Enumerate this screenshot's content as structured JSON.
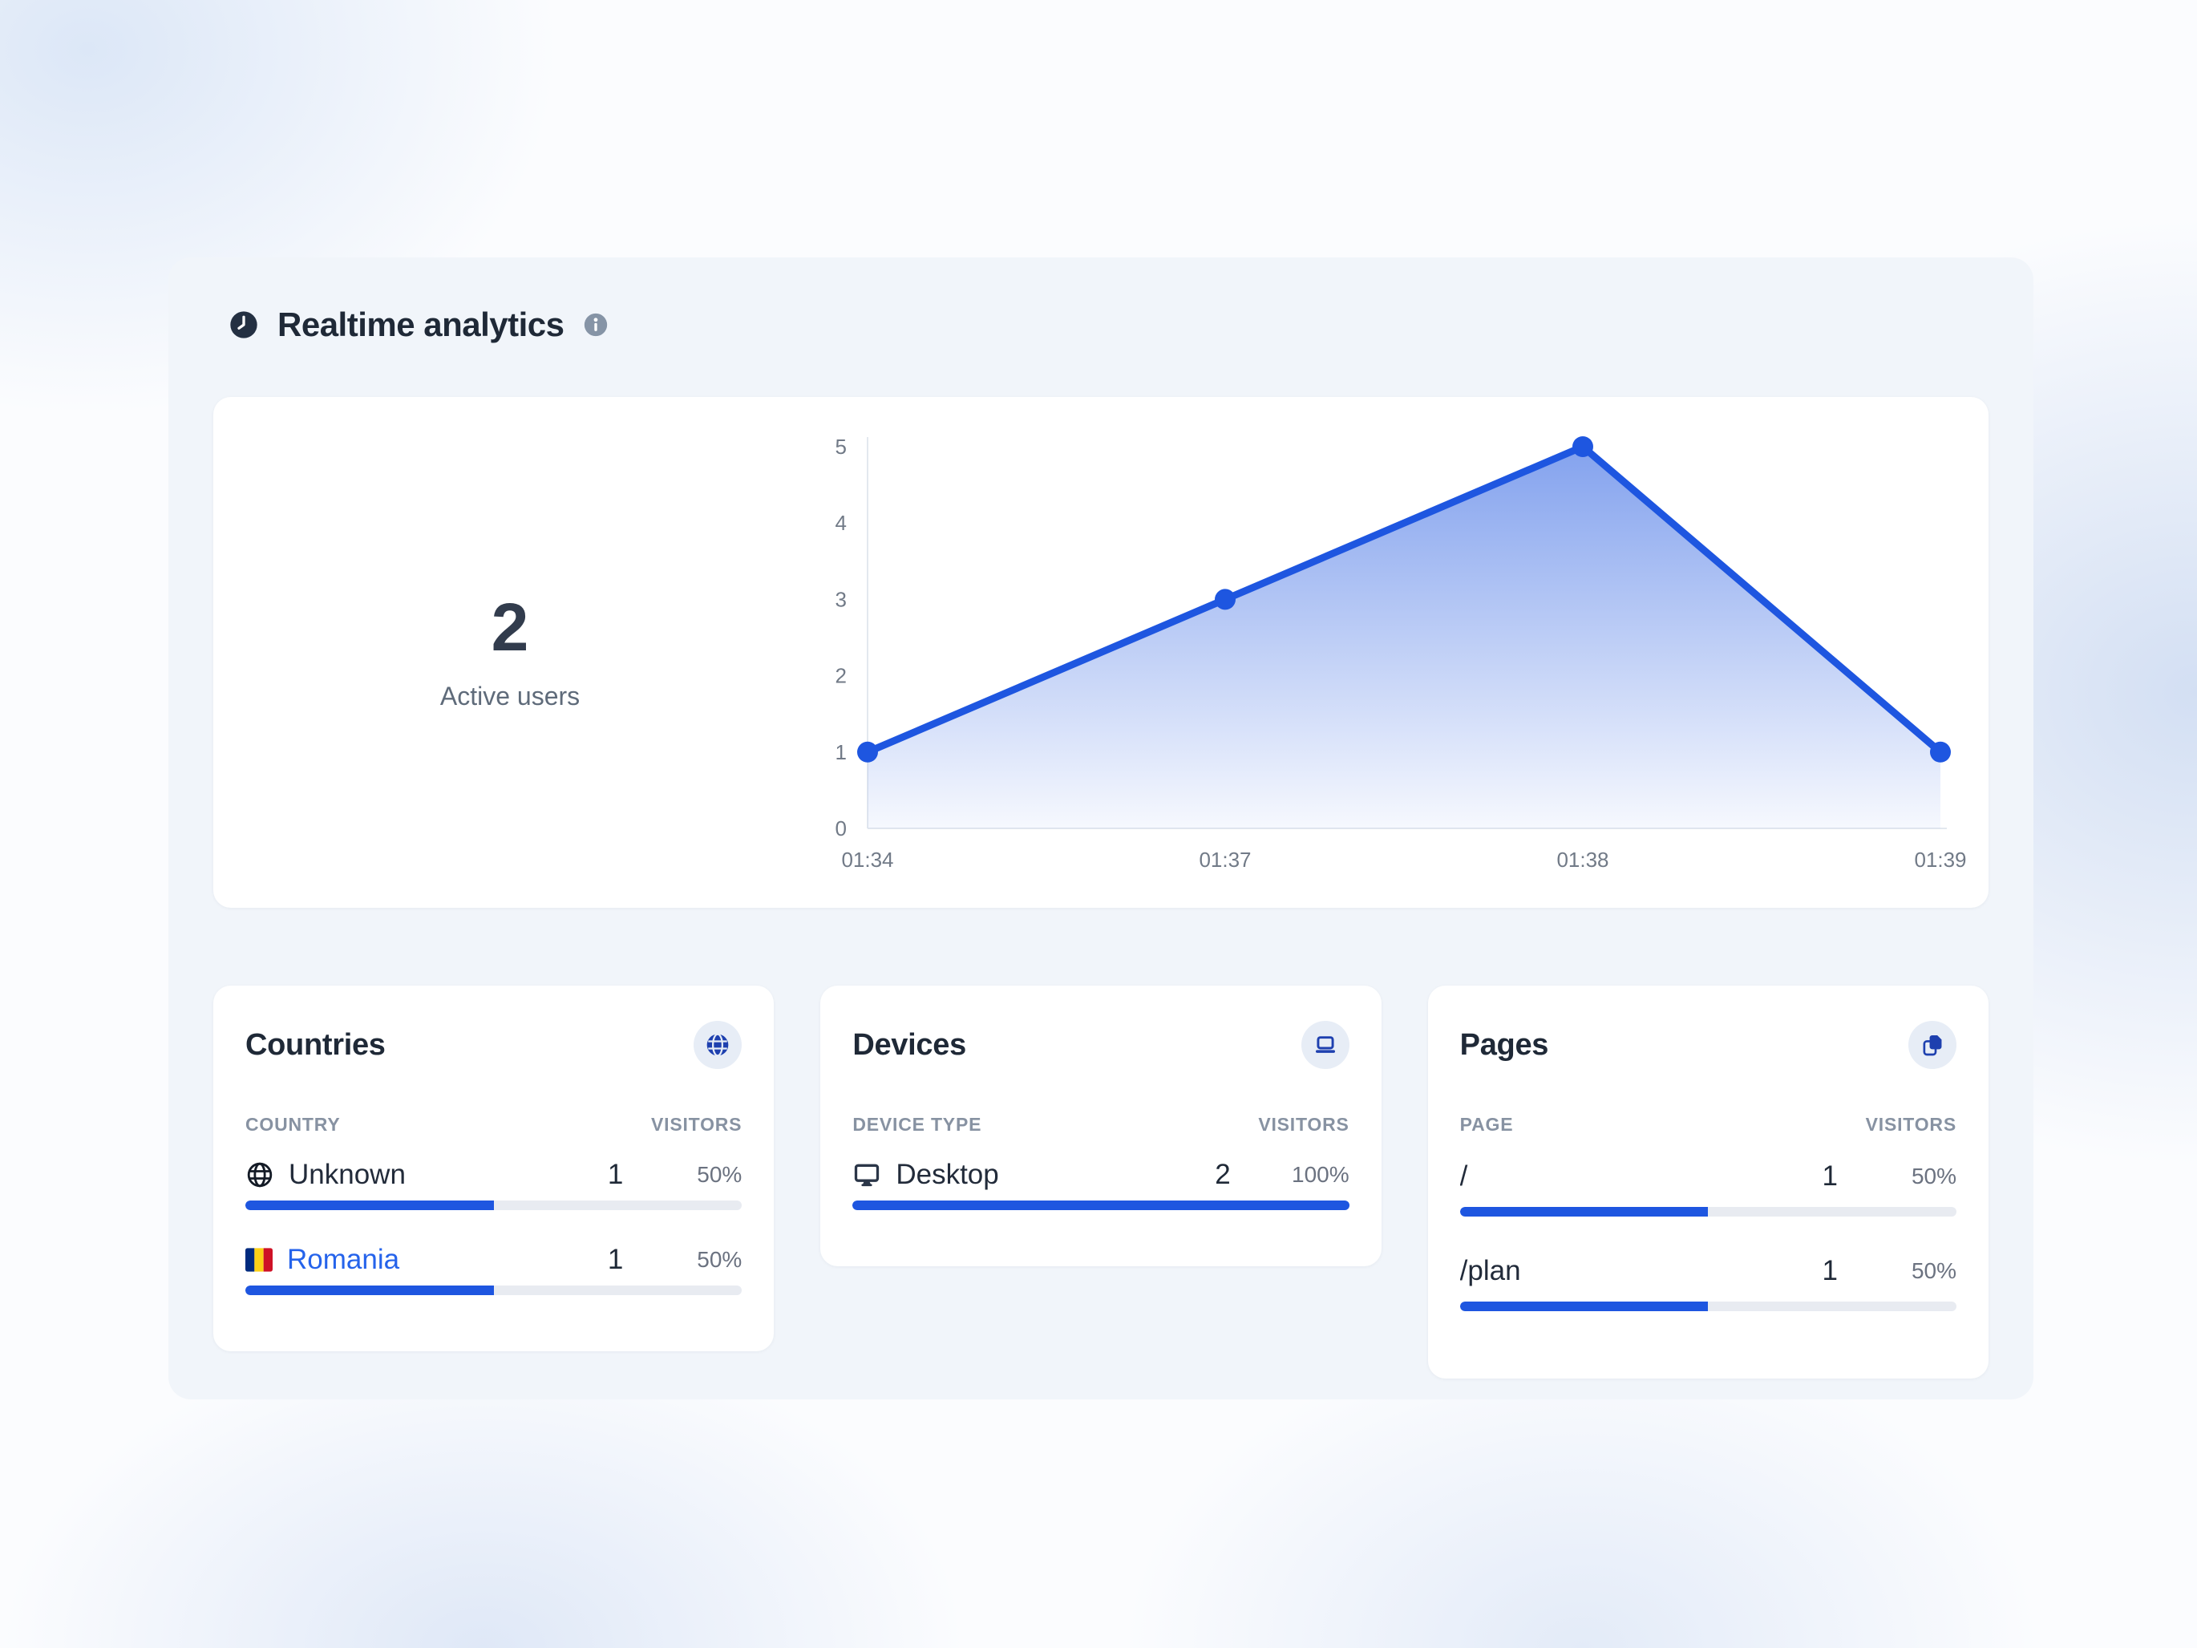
{
  "header": {
    "title": "Realtime analytics"
  },
  "summary": {
    "value": "2",
    "label": "Active users"
  },
  "chart_data": {
    "type": "area",
    "x": [
      "01:34",
      "01:37",
      "01:38",
      "01:39"
    ],
    "values": [
      1,
      3,
      5,
      1
    ],
    "ylim": [
      0,
      5
    ],
    "yticks": [
      0,
      1,
      2,
      3,
      4,
      5
    ],
    "grid": false,
    "legend": "none",
    "title": "",
    "xlabel": "",
    "ylabel": "",
    "line_color": "#1e56e0",
    "axis_color": "#e3e8ef"
  },
  "cards": {
    "countries": {
      "title": "Countries",
      "badge_icon": "globe-icon",
      "columns": [
        "COUNTRY",
        "VISITORS"
      ],
      "rows": [
        {
          "icon": "globe-outline-icon",
          "label": "Unknown",
          "visitors": "1",
          "percent": "50%",
          "bar": 50
        },
        {
          "icon": "romania-flag",
          "label": "Romania",
          "visitors": "1",
          "percent": "50%",
          "bar": 50
        }
      ]
    },
    "devices": {
      "title": "Devices",
      "badge_icon": "laptop-icon",
      "columns": [
        "DEVICE TYPE",
        "VISITORS"
      ],
      "rows": [
        {
          "icon": "desktop-icon",
          "label": "Desktop",
          "visitors": "2",
          "percent": "100%",
          "bar": 100
        }
      ]
    },
    "pages": {
      "title": "Pages",
      "badge_icon": "pages-icon",
      "columns": [
        "PAGE",
        "VISITORS"
      ],
      "rows": [
        {
          "label": "/",
          "visitors": "1",
          "percent": "50%",
          "bar": 50
        },
        {
          "label": "/plan",
          "visitors": "1",
          "percent": "50%",
          "bar": 50
        }
      ]
    }
  },
  "colors": {
    "accent": "#1e56e0",
    "link": "#2563eb",
    "icon_navy": "#1e40af",
    "bar_track": "#e8ebf1",
    "panel_bg": "#f1f5fa",
    "card_bg": "#ffffff",
    "title_text": "#1f2937",
    "muted_text": "#6b7280"
  }
}
